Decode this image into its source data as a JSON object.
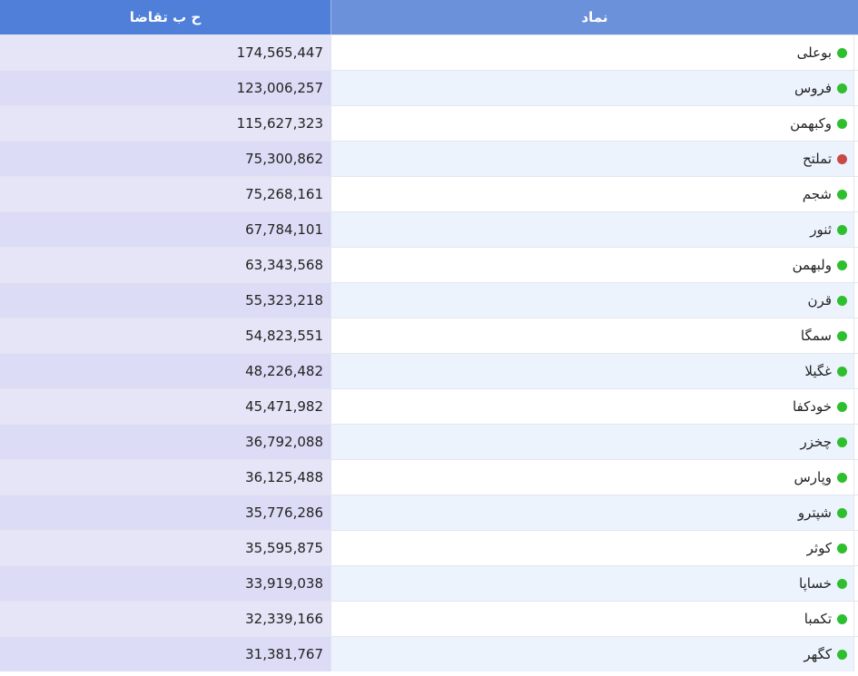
{
  "header": {
    "value_column": "ح ب تقاضا",
    "symbol_column": "نماد"
  },
  "colors": {
    "header_left": "#4f7fd9",
    "header_right": "#6c91db",
    "status_green": "#2dbf2d",
    "status_red": "#c94a45"
  },
  "rows": [
    {
      "symbol": "بوعلی",
      "value": "174,565,447",
      "status": "green"
    },
    {
      "symbol": "فروس",
      "value": "123,006,257",
      "status": "green"
    },
    {
      "symbol": "وکبهمن",
      "value": "115,627,323",
      "status": "green"
    },
    {
      "symbol": "تملتح",
      "value": "75,300,862",
      "status": "red"
    },
    {
      "symbol": "شجم",
      "value": "75,268,161",
      "status": "green"
    },
    {
      "symbol": "ثنور",
      "value": "67,784,101",
      "status": "green"
    },
    {
      "symbol": "ولبهمن",
      "value": "63,343,568",
      "status": "green"
    },
    {
      "symbol": "قرن",
      "value": "55,323,218",
      "status": "green"
    },
    {
      "symbol": "سمگا",
      "value": "54,823,551",
      "status": "green"
    },
    {
      "symbol": "غگیلا",
      "value": "48,226,482",
      "status": "green"
    },
    {
      "symbol": "خودکفا",
      "value": "45,471,982",
      "status": "green"
    },
    {
      "symbol": "چخزر",
      "value": "36,792,088",
      "status": "green"
    },
    {
      "symbol": "وپارس",
      "value": "36,125,488",
      "status": "green"
    },
    {
      "symbol": "شپترو",
      "value": "35,776,286",
      "status": "green"
    },
    {
      "symbol": "کوثر",
      "value": "35,595,875",
      "status": "green"
    },
    {
      "symbol": "خساپا",
      "value": "33,919,038",
      "status": "green"
    },
    {
      "symbol": "تکمبا",
      "value": "32,339,166",
      "status": "green"
    },
    {
      "symbol": "کگهر",
      "value": "31,381,767",
      "status": "green"
    }
  ]
}
